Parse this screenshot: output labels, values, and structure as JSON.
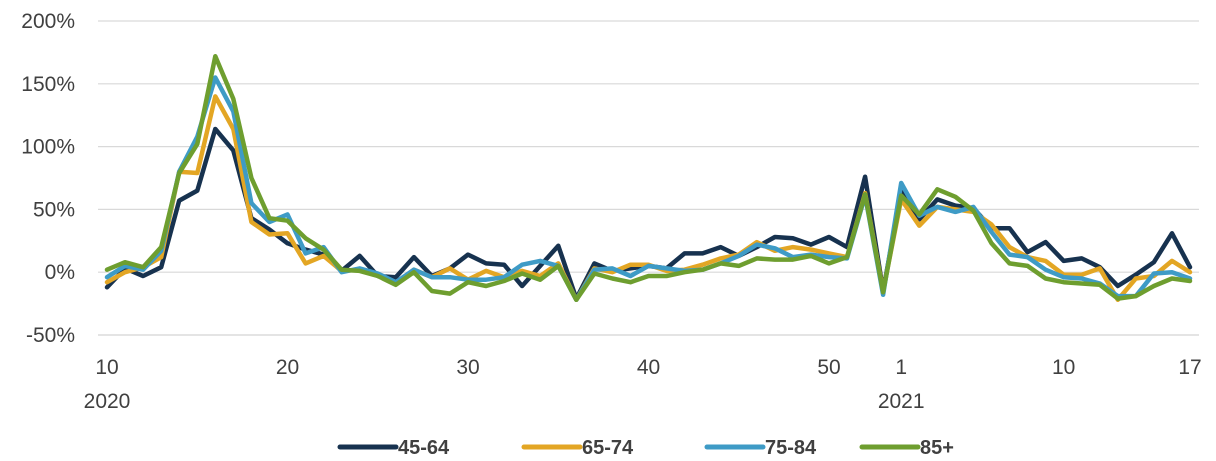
{
  "chart_data": {
    "type": "line",
    "title": "",
    "xlabel": "",
    "ylabel": "",
    "ylim": [
      -50,
      200
    ],
    "y_ticks": [
      -50,
      0,
      50,
      100,
      150,
      200
    ],
    "y_tick_labels": [
      "-50%",
      "0%",
      "50%",
      "100%",
      "150%",
      "200%"
    ],
    "grid": "horizontal",
    "legend_position": "bottom",
    "x_week_labels": [
      "10",
      "20",
      "30",
      "40",
      "50",
      "1",
      "10",
      "17"
    ],
    "x_year_labels": [
      "2020",
      "2021"
    ],
    "x_weeks": [
      "2020-W10",
      "2020-W11",
      "2020-W12",
      "2020-W13",
      "2020-W14",
      "2020-W15",
      "2020-W16",
      "2020-W17",
      "2020-W18",
      "2020-W19",
      "2020-W20",
      "2020-W21",
      "2020-W22",
      "2020-W23",
      "2020-W24",
      "2020-W25",
      "2020-W26",
      "2020-W27",
      "2020-W28",
      "2020-W29",
      "2020-W30",
      "2020-W31",
      "2020-W32",
      "2020-W33",
      "2020-W34",
      "2020-W35",
      "2020-W36",
      "2020-W37",
      "2020-W38",
      "2020-W39",
      "2020-W40",
      "2020-W41",
      "2020-W42",
      "2020-W43",
      "2020-W44",
      "2020-W45",
      "2020-W46",
      "2020-W47",
      "2020-W48",
      "2020-W49",
      "2020-W50",
      "2020-W51",
      "2020-W52",
      "2020-W53",
      "2021-W01",
      "2021-W02",
      "2021-W03",
      "2021-W04",
      "2021-W05",
      "2021-W06",
      "2021-W07",
      "2021-W08",
      "2021-W09",
      "2021-W10",
      "2021-W11",
      "2021-W12",
      "2021-W13",
      "2021-W14",
      "2021-W15",
      "2021-W16",
      "2021-W17"
    ],
    "series": [
      {
        "name": "45-64",
        "color": "#17324f",
        "values": [
          -12,
          3,
          -3,
          4,
          57,
          65,
          114,
          97,
          43,
          34,
          23,
          18,
          14,
          1,
          13,
          -3,
          -4,
          12,
          -3,
          3,
          14,
          7,
          6,
          -11,
          5,
          21,
          -21,
          7,
          1,
          3,
          5,
          3,
          15,
          15,
          20,
          13,
          20,
          28,
          27,
          22,
          28,
          20,
          76,
          -15,
          64,
          42,
          58,
          53,
          51,
          35,
          35,
          16,
          24,
          9,
          11,
          4,
          -11,
          -2,
          8,
          31,
          4
        ]
      },
      {
        "name": "65-74",
        "color": "#e3a624",
        "values": [
          -8,
          0,
          4,
          12,
          80,
          79,
          140,
          114,
          40,
          30,
          31,
          7,
          13,
          1,
          2,
          -2,
          -9,
          2,
          -4,
          3,
          -6,
          1,
          -4,
          1,
          -3,
          7,
          -22,
          3,
          0,
          6,
          6,
          1,
          2,
          6,
          11,
          14,
          24,
          17,
          20,
          18,
          15,
          12,
          63,
          -15,
          58,
          37,
          52,
          50,
          48,
          38,
          20,
          12,
          9,
          -2,
          -2,
          3,
          -22,
          -5,
          -3,
          9,
          0
        ]
      },
      {
        "name": "75-84",
        "color": "#3e9bc6",
        "values": [
          -4,
          5,
          2,
          17,
          80,
          108,
          155,
          128,
          55,
          40,
          46,
          15,
          20,
          0,
          3,
          -1,
          -8,
          2,
          -4,
          -4,
          -6,
          -6,
          -4,
          6,
          9,
          5,
          -22,
          2,
          3,
          -3,
          5,
          3,
          1,
          2,
          7,
          13,
          22,
          19,
          12,
          14,
          12,
          11,
          61,
          -18,
          71,
          45,
          52,
          48,
          52,
          32,
          14,
          12,
          2,
          -4,
          -5,
          -9,
          -19,
          -19,
          -1,
          0,
          -5
        ]
      },
      {
        "name": "85+",
        "color": "#6e9e2f",
        "values": [
          2,
          8,
          4,
          20,
          79,
          102,
          172,
          138,
          75,
          43,
          41,
          27,
          18,
          2,
          1,
          -3,
          -10,
          0,
          -15,
          -17,
          -8,
          -11,
          -7,
          -1,
          -6,
          5,
          -22,
          -1,
          -5,
          -8,
          -3,
          -3,
          0,
          2,
          7,
          5,
          11,
          10,
          10,
          13,
          7,
          12,
          62,
          -16,
          61,
          46,
          66,
          60,
          49,
          23,
          7,
          5,
          -5,
          -8,
          -9,
          -10,
          -21,
          -19,
          -11,
          -5,
          -7
        ]
      }
    ]
  }
}
